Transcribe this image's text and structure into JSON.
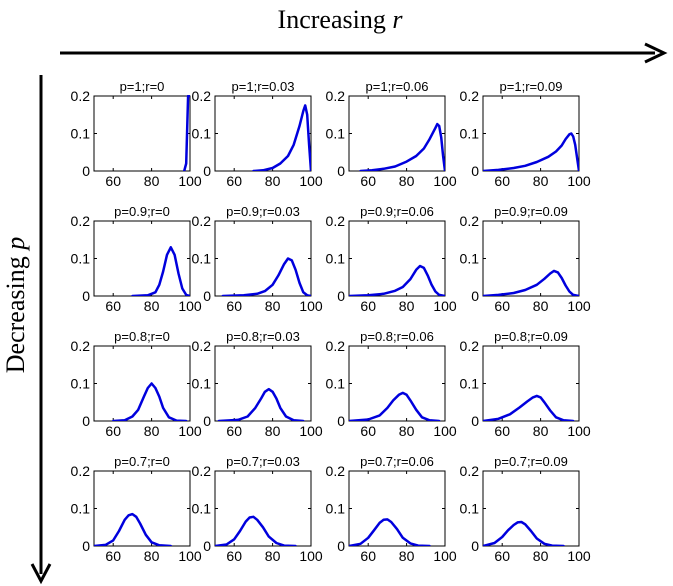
{
  "header": {
    "top_label_prefix": "Increasing ",
    "top_label_var": "r",
    "left_label_prefix": "Decreasing ",
    "left_label_var": "p"
  },
  "colors": {
    "curve": "#0000dd",
    "axis": "#000000",
    "text": "#000000",
    "background": "#ffffff"
  },
  "chart_data": {
    "type": "line",
    "description_grid": "4x4 small multiples of probability distributions",
    "xlim": [
      50,
      100
    ],
    "ylim": [
      0,
      0.2
    ],
    "xticks": [
      60,
      80,
      100
    ],
    "yticks": [
      0,
      0.1,
      0.2
    ],
    "xtick_labels": [
      "60",
      "80",
      "100"
    ],
    "ytick_labels": [
      "0",
      "0.1",
      "0.2"
    ],
    "panels": [
      {
        "title": "p=1;r=0",
        "p": 1,
        "r": 0,
        "x": [
          97,
          98,
          99,
          100
        ],
        "y": [
          0,
          0.02,
          0.2,
          0.2
        ]
      },
      {
        "title": "p=1;r=0.03",
        "p": 1,
        "r": 0.03,
        "x": [
          70,
          75,
          80,
          84,
          88,
          91,
          94,
          96,
          97,
          98,
          99,
          100
        ],
        "y": [
          0,
          0.002,
          0.008,
          0.02,
          0.04,
          0.07,
          0.12,
          0.16,
          0.175,
          0.15,
          0.07,
          0
        ]
      },
      {
        "title": "p=1;r=0.06",
        "p": 1,
        "r": 0.06,
        "x": [
          56,
          62,
          68,
          74,
          80,
          85,
          89,
          92,
          95,
          96,
          97,
          98,
          99,
          100
        ],
        "y": [
          0,
          0.002,
          0.006,
          0.012,
          0.025,
          0.04,
          0.06,
          0.085,
          0.115,
          0.125,
          0.12,
          0.09,
          0.04,
          0
        ]
      },
      {
        "title": "p=1;r=0.09",
        "p": 1,
        "r": 0.09,
        "x": [
          50,
          58,
          66,
          72,
          78,
          84,
          88,
          91,
          93,
          95,
          96,
          97,
          98,
          99,
          100
        ],
        "y": [
          0,
          0.003,
          0.008,
          0.014,
          0.024,
          0.038,
          0.052,
          0.068,
          0.085,
          0.098,
          0.1,
          0.092,
          0.07,
          0.035,
          0
        ]
      },
      {
        "title": "p=0.9;r=0",
        "p": 0.9,
        "r": 0,
        "x": [
          70,
          78,
          82,
          84,
          86,
          88,
          90,
          92,
          94,
          96,
          98,
          100
        ],
        "y": [
          0,
          0.002,
          0.01,
          0.03,
          0.065,
          0.11,
          0.13,
          0.11,
          0.06,
          0.02,
          0.003,
          0
        ]
      },
      {
        "title": "p=0.9;r=0.03",
        "p": 0.9,
        "r": 0.03,
        "x": [
          54,
          65,
          72,
          76,
          80,
          83,
          86,
          88,
          90,
          92,
          94,
          96,
          98,
          100
        ],
        "y": [
          0,
          0.002,
          0.006,
          0.013,
          0.03,
          0.055,
          0.085,
          0.1,
          0.095,
          0.07,
          0.035,
          0.01,
          0.002,
          0
        ]
      },
      {
        "title": "p=0.9;r=0.06",
        "p": 0.9,
        "r": 0.06,
        "x": [
          50,
          60,
          68,
          74,
          78,
          82,
          85,
          87,
          89,
          91,
          93,
          95,
          97,
          100
        ],
        "y": [
          0,
          0.002,
          0.006,
          0.014,
          0.024,
          0.045,
          0.07,
          0.08,
          0.075,
          0.055,
          0.03,
          0.012,
          0.003,
          0
        ]
      },
      {
        "title": "p=0.9;r=0.09",
        "p": 0.9,
        "r": 0.09,
        "x": [
          50,
          58,
          66,
          72,
          78,
          82,
          85,
          87,
          89,
          91,
          93,
          95,
          97,
          100
        ],
        "y": [
          0,
          0.003,
          0.008,
          0.016,
          0.03,
          0.046,
          0.06,
          0.067,
          0.063,
          0.048,
          0.028,
          0.012,
          0.003,
          0
        ]
      },
      {
        "title": "p=0.8;r=0",
        "p": 0.8,
        "r": 0,
        "x": [
          60,
          66,
          70,
          73,
          76,
          78,
          80,
          82,
          84,
          86,
          89,
          93,
          98
        ],
        "y": [
          0,
          0.002,
          0.012,
          0.03,
          0.065,
          0.088,
          0.1,
          0.088,
          0.065,
          0.035,
          0.01,
          0.001,
          0
        ]
      },
      {
        "title": "p=0.8;r=0.03",
        "p": 0.8,
        "r": 0.03,
        "x": [
          52,
          62,
          67,
          71,
          74,
          76,
          78,
          80,
          82,
          84,
          87,
          91,
          96
        ],
        "y": [
          0,
          0.003,
          0.012,
          0.035,
          0.06,
          0.078,
          0.085,
          0.078,
          0.06,
          0.035,
          0.012,
          0.002,
          0
        ]
      },
      {
        "title": "p=0.8;r=0.06",
        "p": 0.8,
        "r": 0.06,
        "x": [
          50,
          60,
          66,
          70,
          73,
          76,
          78,
          80,
          82,
          85,
          88,
          92,
          97
        ],
        "y": [
          0,
          0.004,
          0.015,
          0.035,
          0.055,
          0.07,
          0.075,
          0.07,
          0.055,
          0.03,
          0.01,
          0.002,
          0
        ]
      },
      {
        "title": "p=0.8;r=0.09",
        "p": 0.8,
        "r": 0.09,
        "x": [
          50,
          58,
          64,
          69,
          73,
          76,
          78,
          80,
          82,
          85,
          88,
          92,
          97
        ],
        "y": [
          0,
          0.006,
          0.018,
          0.036,
          0.052,
          0.063,
          0.067,
          0.063,
          0.05,
          0.028,
          0.01,
          0.002,
          0
        ]
      },
      {
        "title": "p=0.7;r=0",
        "p": 0.7,
        "r": 0,
        "x": [
          50,
          56,
          60,
          63,
          66,
          68,
          70,
          72,
          74,
          77,
          80,
          84,
          90
        ],
        "y": [
          0,
          0.003,
          0.015,
          0.04,
          0.07,
          0.082,
          0.085,
          0.078,
          0.06,
          0.03,
          0.01,
          0.002,
          0
        ]
      },
      {
        "title": "p=0.7;r=0.03",
        "p": 0.7,
        "r": 0.03,
        "x": [
          50,
          56,
          60,
          63,
          66,
          68,
          70,
          72,
          75,
          78,
          82,
          86,
          92
        ],
        "y": [
          0,
          0.004,
          0.018,
          0.04,
          0.065,
          0.076,
          0.078,
          0.07,
          0.05,
          0.025,
          0.008,
          0.001,
          0
        ]
      },
      {
        "title": "p=0.7;r=0.06",
        "p": 0.7,
        "r": 0.06,
        "x": [
          50,
          56,
          60,
          63,
          66,
          68,
          70,
          72,
          75,
          78,
          82,
          86,
          92
        ],
        "y": [
          0,
          0.006,
          0.022,
          0.042,
          0.062,
          0.07,
          0.071,
          0.064,
          0.045,
          0.022,
          0.007,
          0.001,
          0
        ]
      },
      {
        "title": "p=0.7;r=0.09",
        "p": 0.7,
        "r": 0.09,
        "x": [
          50,
          56,
          60,
          63,
          66,
          68,
          70,
          72,
          75,
          78,
          82,
          86,
          92
        ],
        "y": [
          0,
          0.008,
          0.024,
          0.042,
          0.056,
          0.063,
          0.064,
          0.058,
          0.04,
          0.02,
          0.006,
          0.001,
          0
        ]
      }
    ]
  }
}
